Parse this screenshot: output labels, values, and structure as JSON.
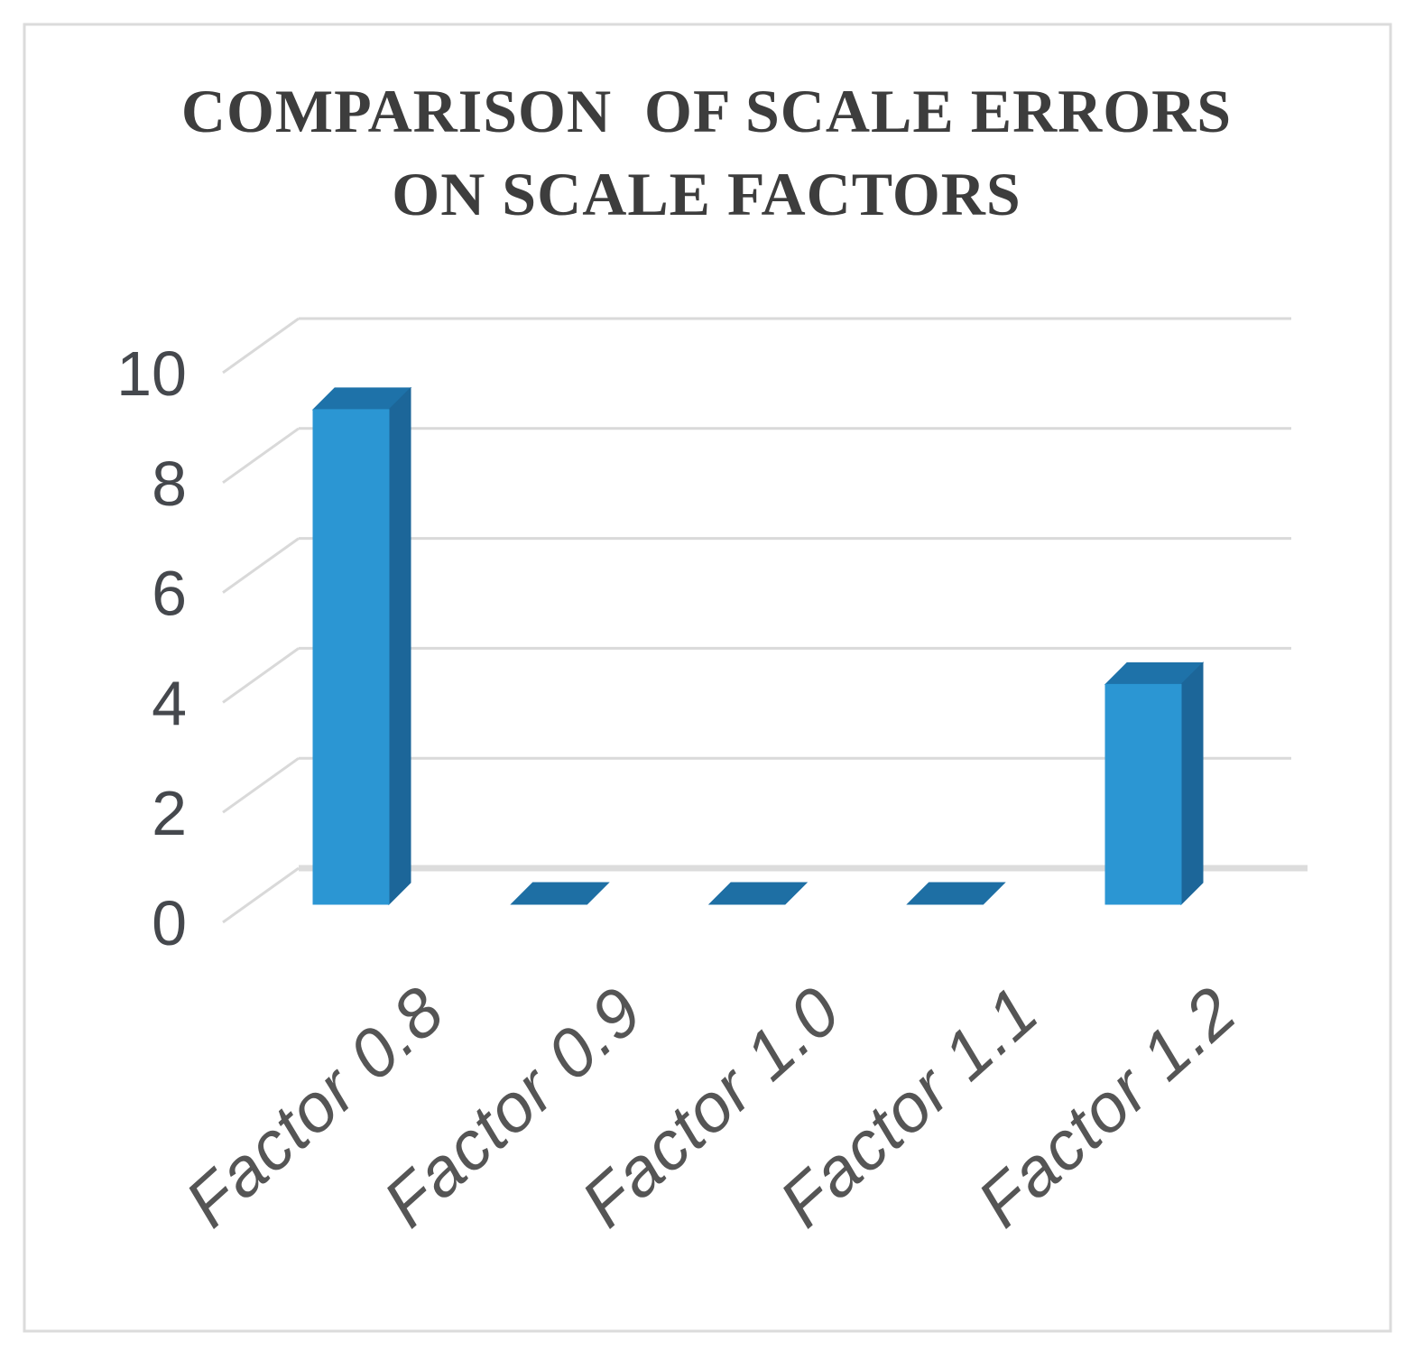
{
  "figure": {
    "background": "#ffffff",
    "frame_border_color": "#dbdbdb"
  },
  "chart_data": {
    "type": "bar",
    "subtype": "3d-column",
    "title": "COMPARISON OF SCALE ERRORS ON SCALE FACTORS",
    "title_lines": [
      "COMPARISON  OF SCALE ERRORS",
      "ON SCALE FACTORS"
    ],
    "categories": [
      "Factor 0.8",
      "Factor 0.9",
      "Factor 1.0",
      "Factor 1.1",
      "Factor 1.2"
    ],
    "values": [
      9,
      0,
      0,
      0,
      4
    ],
    "yticks": [
      0,
      2,
      4,
      6,
      8,
      10
    ],
    "ylim": [
      0,
      10
    ],
    "xlabel": "",
    "ylabel": "",
    "legend": "none",
    "grid": true,
    "x_tick_rotation_deg": -42,
    "colors": {
      "bar_front": "#2b96d3",
      "bar_top": "#1e72a9",
      "bar_side": "#1c6699",
      "zero_slab": "#1e6fa4",
      "gridline": "#d9d9d9",
      "zero_line": "#dcdcdc",
      "title_text": "#3d3d3d",
      "y_tick_text": "#45484d",
      "x_tick_text": "#555555"
    }
  }
}
